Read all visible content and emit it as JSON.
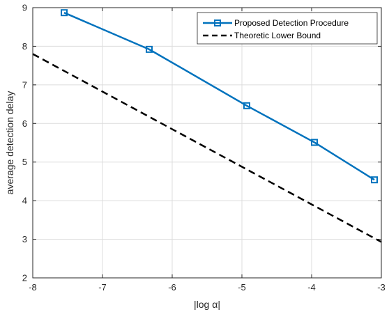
{
  "chart_data": {
    "type": "line",
    "xlabel": "|log α|",
    "ylabel": "average detection delay",
    "xlim": [
      -8,
      -3
    ],
    "ylim": [
      2,
      9
    ],
    "xticks": [
      -8,
      -7,
      -6,
      -5,
      -4,
      -3
    ],
    "yticks": [
      2,
      3,
      4,
      5,
      6,
      7,
      8,
      9
    ],
    "grid": true,
    "legend_position": "top-right",
    "series": [
      {
        "name": "Proposed Detection Procedure",
        "color": "#0072BD",
        "style": "solid",
        "marker": "square",
        "x": [
          -7.55,
          -6.33,
          -4.93,
          -3.96,
          -3.1
        ],
        "y": [
          8.87,
          7.92,
          6.46,
          5.51,
          4.54
        ]
      },
      {
        "name": "Theoretic Lower Bound",
        "color": "#000000",
        "style": "dashed",
        "marker": "none",
        "x": [
          -8,
          -3
        ],
        "y": [
          7.8,
          2.93
        ]
      }
    ]
  }
}
